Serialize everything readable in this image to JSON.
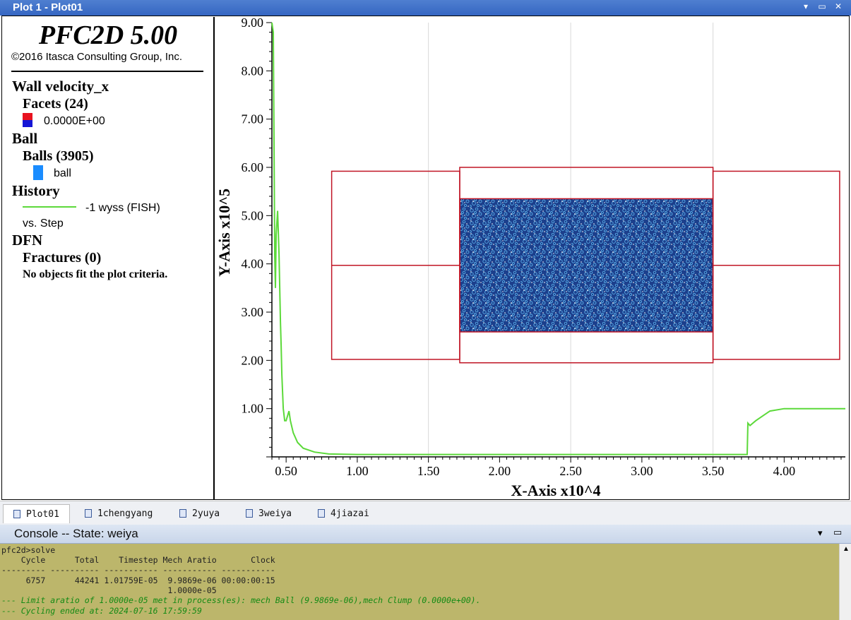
{
  "window": {
    "title": "Plot 1 - Plot01"
  },
  "legend": {
    "app_title": "PFC2D 5.00",
    "copyright": "©2016 Itasca Consulting Group, Inc.",
    "wall_heading": "Wall velocity_x",
    "facets_label": "Facets (24)",
    "facets_value": "0.0000E+00",
    "ball_heading": "Ball",
    "balls_label": "Balls (3905)",
    "ball_item": "ball",
    "history_heading": "History",
    "history_item": "-1 wyss (FISH)",
    "history_vs": "vs. Step",
    "dfn_heading": "DFN",
    "fractures_label": "Fractures (0)",
    "fractures_note": "No objects fit the plot criteria.",
    "colors": {
      "facet_top": "#e8121f",
      "facet_bottom": "#1515d6",
      "ball": "#1a8cff",
      "history": "#5cd93a"
    }
  },
  "chart_data": {
    "type": "line",
    "xlabel": "X-Axis x10^4",
    "ylabel": "Y-Axis x10^5",
    "xlim": [
      0.4,
      4.43
    ],
    "ylim": [
      0.0,
      9.0
    ],
    "xticks": [
      "0.50",
      "1.00",
      "1.50",
      "2.00",
      "2.50",
      "3.00",
      "3.50",
      "4.00"
    ],
    "yticks": [
      "1.00",
      "2.00",
      "3.00",
      "4.00",
      "5.00",
      "6.00",
      "7.00",
      "8.00",
      "9.00"
    ],
    "grid": true,
    "series": [
      {
        "color": "#5cd93a",
        "x": [
          0.4,
          0.41,
          0.42,
          0.425,
          0.43,
          0.44,
          0.45,
          0.46,
          0.465,
          0.47,
          0.48,
          0.49,
          0.5,
          0.52,
          0.53,
          0.55,
          0.58,
          0.62,
          0.7,
          0.8,
          1.0,
          2.0,
          3.0,
          3.74,
          3.745,
          3.76,
          3.8,
          3.85,
          3.9,
          4.0,
          4.2,
          4.43
        ],
        "y": [
          9.0,
          8.8,
          4.2,
          3.5,
          4.6,
          5.1,
          4.2,
          2.8,
          2.3,
          1.7,
          1.0,
          0.75,
          0.75,
          0.95,
          0.75,
          0.5,
          0.3,
          0.18,
          0.1,
          0.06,
          0.05,
          0.05,
          0.05,
          0.05,
          0.7,
          0.65,
          0.75,
          0.85,
          0.95,
          1.0,
          1.0,
          1.0
        ]
      }
    ],
    "walls": {
      "color": "#c01525",
      "left_box": {
        "x": [
          0.82,
          1.72
        ],
        "y": [
          2.02,
          5.92
        ]
      },
      "center_box": {
        "x": [
          1.72,
          3.5
        ],
        "y": [
          1.95,
          6.0
        ]
      },
      "right_box": {
        "x": [
          3.5,
          4.39
        ],
        "y": [
          2.02,
          5.92
        ]
      },
      "mid_line_y": 3.97,
      "specimen": {
        "x": [
          1.72,
          3.5
        ],
        "y": [
          2.59,
          5.35
        ]
      }
    },
    "ball_colors": {
      "fill": "#1c3f8c",
      "speckle": "#5aaee8",
      "hole": "#ffffff"
    }
  },
  "tabs": [
    {
      "label": "Plot01",
      "active": true
    },
    {
      "label": "1chengyang",
      "active": false
    },
    {
      "label": "2yuya",
      "active": false
    },
    {
      "label": "3weiya",
      "active": false
    },
    {
      "label": "4jiazai",
      "active": false
    }
  ],
  "console": {
    "title": "Console -- State: weiya",
    "lines": [
      "pfc2d>solve",
      "    Cycle      Total    Timestep Mech Aratio       Clock",
      "--------- ---------- ----------- ----------- -----------",
      "",
      "     6757      44241 1.01759E-05  9.9869e-06 00:00:00:15",
      "                                  1.0000e-05",
      "--- Limit aratio of 1.0000e-05 met in process(es): mech Ball (9.9869e-06),mech Clump (0.0000e+00).",
      "--- Cycling ended at: 2024-07-16 17:59:59"
    ]
  }
}
